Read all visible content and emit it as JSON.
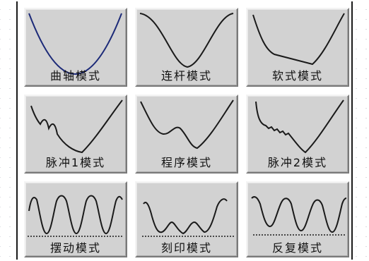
{
  "colors": {
    "button_face": "#d2d2d2",
    "curve_blue": "#1c2a78",
    "curve_black": "#1a1a1a"
  },
  "modes": [
    {
      "label": "曲轴模式",
      "curve": "crank-curve"
    },
    {
      "label": "连杆模式",
      "curve": "link-curve"
    },
    {
      "label": "软式模式",
      "curve": "soft-curve"
    },
    {
      "label": "脉冲1模式",
      "curve": "pulse1-curve"
    },
    {
      "label": "程序模式",
      "curve": "program-curve"
    },
    {
      "label": "脉冲2模式",
      "curve": "pulse2-curve"
    },
    {
      "label": "摆动模式",
      "curve": "swing-curve"
    },
    {
      "label": "刻印模式",
      "curve": "stamp-curve"
    },
    {
      "label": "反复模式",
      "curve": "repeat-curve"
    }
  ]
}
